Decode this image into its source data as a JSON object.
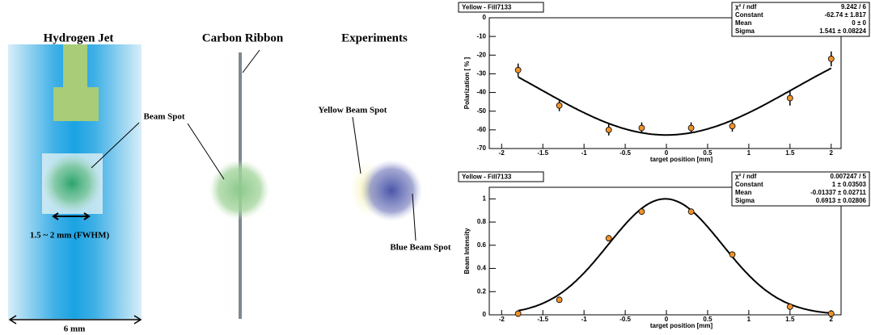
{
  "diagram": {
    "jet_title": "Hydrogen Jet",
    "ribbon_title": "Carbon Ribbon",
    "experiments_title": "Experiments",
    "beam_spot": "Beam Spot",
    "fwhm": "1.5 ~ 2 mm (FWHM)",
    "width": "6 mm",
    "yellow_spot": "Yellow Beam Spot",
    "blue_spot": "Blue Beam Spot"
  },
  "chart_data": [
    {
      "type": "scatter",
      "title": "Yellow - Fill7133",
      "x_label": "target position [mm]",
      "y_label": "Polarization [ % ]",
      "x": [
        -1.8,
        -1.3,
        -0.7,
        -0.3,
        0.3,
        0.8,
        1.5,
        2.0
      ],
      "values": [
        -28,
        -47,
        -60,
        -59,
        -59,
        -58,
        -43,
        -22
      ],
      "errors": [
        3.5,
        3,
        3,
        3,
        3,
        3,
        4,
        4
      ],
      "color": "#f0922e",
      "xlim": [
        -2.15,
        2.12
      ],
      "xticks": [
        -2,
        -1.5,
        -1,
        -0.5,
        0,
        0.5,
        1,
        1.5,
        2
      ],
      "ylim": [
        -70,
        0
      ],
      "yticks": [
        0,
        -10,
        -20,
        -30,
        -40,
        -50,
        -60,
        -70
      ],
      "stats": [
        {
          "name": "χ² / ndf",
          "label": "9.242 / 6"
        },
        {
          "name": "Constant",
          "label": "-62.74 ± 1.817",
          "value": -62.74
        },
        {
          "name": "Mean",
          "label": "0 ±    0",
          "value": 0
        },
        {
          "name": "Sigma",
          "label": "1.541 ± 0.08224",
          "value": 1.541
        }
      ]
    },
    {
      "type": "scatter",
      "title": "Yellow - Fill7133",
      "x_label": "target position [mm]",
      "y_label": "Beam Intensity",
      "x": [
        -1.8,
        -1.3,
        -0.7,
        -0.3,
        0.3,
        0.8,
        1.5,
        2.0
      ],
      "values": [
        0.01,
        0.13,
        0.66,
        0.89,
        0.89,
        0.52,
        0.07,
        0.01
      ],
      "color": "#f0922e",
      "xlim": [
        -2.15,
        2.12
      ],
      "xticks": [
        -2,
        -1.5,
        -1,
        -0.5,
        0,
        0.5,
        1,
        1.5,
        2
      ],
      "ylim": [
        0,
        1.1
      ],
      "yticks": [
        0,
        0.2,
        0.4,
        0.6,
        0.8,
        1
      ],
      "stats": [
        {
          "name": "χ² / ndf",
          "label": "0.007247 / 5"
        },
        {
          "name": "Constant",
          "label": "1 ± 0.03503",
          "value": 1
        },
        {
          "name": "Mean",
          "label": "-0.01337 ± 0.02711",
          "value": -0.01337
        },
        {
          "name": "Sigma",
          "label": "0.6913 ± 0.02806",
          "value": 0.6913
        }
      ]
    }
  ]
}
